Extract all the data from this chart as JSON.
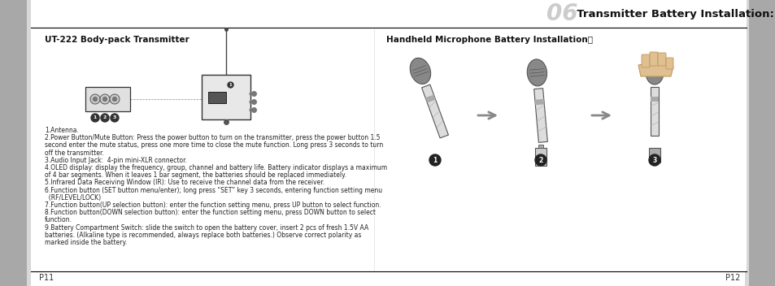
{
  "title_number": "06",
  "title_text": "Transmitter Battery Installation:",
  "left_section_title": "UT-222 Body-pack Transmitter",
  "right_section_title": "Handheld Microphone Battery Installation：",
  "body_text_lines": [
    "1.Antenna.",
    "2.Power Button/Mute Button: Press the power button to turn on the transmitter, press the power button 1.5",
    "second enter the mute status, press one more time to close the mute function. Long press 3 seconds to turn",
    "off the transmitter.",
    "3.Audio Input Jack:  4-pin mini-XLR connector.",
    "4.OLED display: display the frequency, group, channel and battery life. Battery indicator displays a maximum",
    "of 4 bar segments. When it leaves 1 bar segment, the batteries should be replaced immediately.",
    "5.Infrared Data Receiving Window (IR): Use to receive the channel data from the receiver.",
    "6.Function button (SET button menu/enter); long press “SET” key 3 seconds, entering function setting menu",
    "  (RF/LEVEL/LOCK)",
    "7.Function button(UP selection button): enter the function setting menu, press UP button to select function.",
    "8.Function button(DOWN selection button): enter the function setting menu, press DOWN button to select",
    "function.",
    "9.Battery Compartment Switch: slide the switch to open the battery cover, insert 2 pcs of fresh 1.5V AA",
    "batteries. (Alkaline type is recommended, always replace both batteries.) Observe correct polarity as",
    "marked inside the battery."
  ],
  "page_left": "P11",
  "page_right": "P12",
  "bg_color": "#ffffff",
  "sidebar_color": "#b0b0b0",
  "title_number_color": "#c8c8c8",
  "title_text_color": "#111111",
  "divider_color": "#000000",
  "text_color": "#222222",
  "section_title_color": "#111111",
  "arrow_color": "#999999",
  "mic_body_color": "#dddddd",
  "mic_head_color": "#999999",
  "mic_stripe_color": "#444444",
  "label_circle_color": "#222222"
}
